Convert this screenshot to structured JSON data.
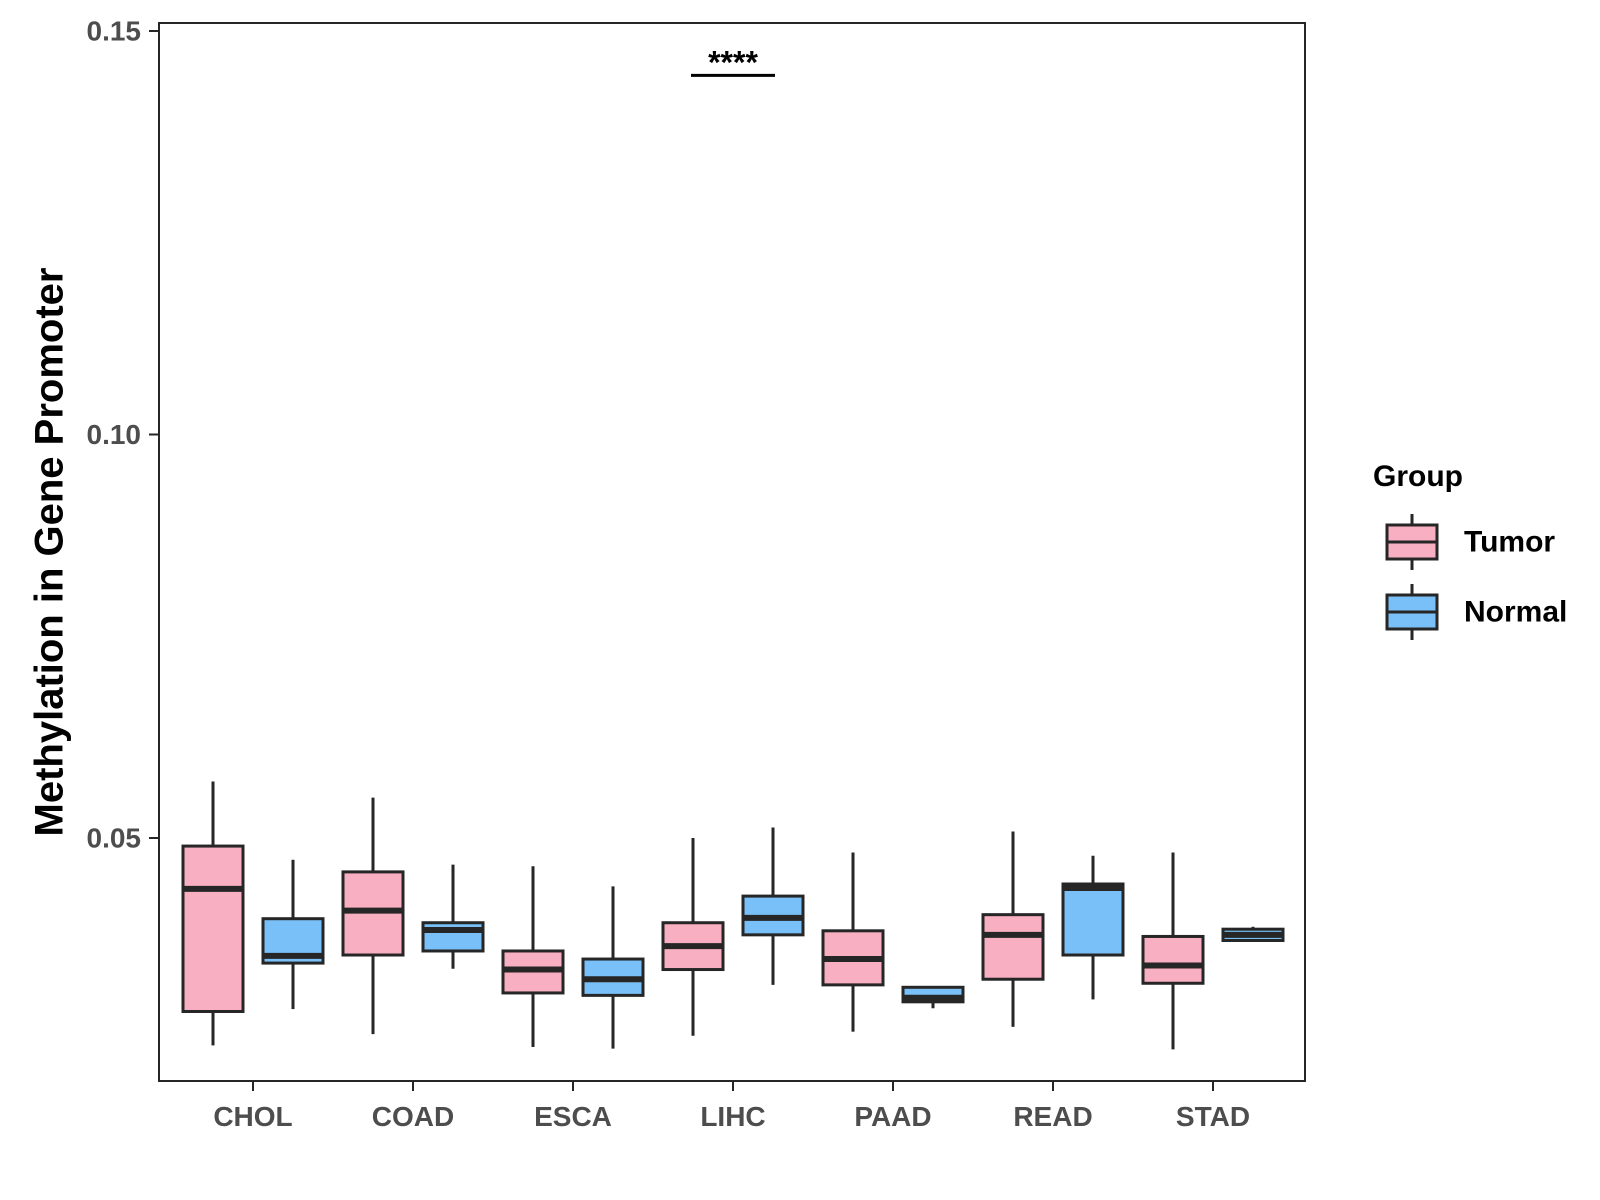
{
  "chart_data": {
    "type": "boxplot",
    "title": "",
    "xlabel": "",
    "ylabel": "Methylation in Gene Promoter",
    "ylim": [
      0.02,
      0.151
    ],
    "yticks": [
      0.05,
      0.1,
      0.15
    ],
    "ytick_labels": [
      "0.05",
      "0.10",
      "0.15"
    ],
    "categories": [
      "CHOL",
      "COAD",
      "ESCA",
      "LIHC",
      "PAAD",
      "READ",
      "STAD"
    ],
    "legend": {
      "title": "Group",
      "position": "right",
      "entries": [
        "Tumor",
        "Normal"
      ]
    },
    "colors": {
      "Tumor": "#f9afc2",
      "Normal": "#78c0f7",
      "outline": "#262626"
    },
    "series": [
      {
        "name": "Tumor",
        "boxes": [
          {
            "category": "CHOL",
            "min": 0.0243,
            "q1": 0.0285,
            "median": 0.0437,
            "q3": 0.049,
            "max": 0.057
          },
          {
            "category": "COAD",
            "min": 0.0257,
            "q1": 0.0355,
            "median": 0.041,
            "q3": 0.0458,
            "max": 0.055
          },
          {
            "category": "ESCA",
            "min": 0.0241,
            "q1": 0.0308,
            "median": 0.0337,
            "q3": 0.036,
            "max": 0.0465
          },
          {
            "category": "LIHC",
            "min": 0.0255,
            "q1": 0.0337,
            "median": 0.0366,
            "q3": 0.0395,
            "max": 0.05
          },
          {
            "category": "PAAD",
            "min": 0.026,
            "q1": 0.0318,
            "median": 0.035,
            "q3": 0.0385,
            "max": 0.0482
          },
          {
            "category": "READ",
            "min": 0.0266,
            "q1": 0.0325,
            "median": 0.038,
            "q3": 0.0405,
            "max": 0.0508
          },
          {
            "category": "STAD",
            "min": 0.0238,
            "q1": 0.032,
            "median": 0.0342,
            "q3": 0.0378,
            "max": 0.0482
          }
        ]
      },
      {
        "name": "Normal",
        "boxes": [
          {
            "category": "CHOL",
            "min": 0.0288,
            "q1": 0.0345,
            "median": 0.0354,
            "q3": 0.04,
            "max": 0.0473
          },
          {
            "category": "COAD",
            "min": 0.0338,
            "q1": 0.036,
            "median": 0.0386,
            "q3": 0.0395,
            "max": 0.0467
          },
          {
            "category": "ESCA",
            "min": 0.0239,
            "q1": 0.0305,
            "median": 0.0325,
            "q3": 0.035,
            "max": 0.044
          },
          {
            "category": "LIHC",
            "min": 0.0318,
            "q1": 0.038,
            "median": 0.0401,
            "q3": 0.0428,
            "max": 0.0513
          },
          {
            "category": "PAAD",
            "min": 0.0289,
            "q1": 0.0297,
            "median": 0.0302,
            "q3": 0.0315,
            "max": 0.0315
          },
          {
            "category": "READ",
            "min": 0.03,
            "q1": 0.0355,
            "median": 0.0438,
            "q3": 0.0443,
            "max": 0.0478
          },
          {
            "category": "STAD",
            "min": 0.0372,
            "q1": 0.0373,
            "median": 0.038,
            "q3": 0.0387,
            "max": 0.039
          }
        ]
      }
    ],
    "annotations": [
      {
        "category": "LIHC",
        "text": "****",
        "y": 0.1445
      }
    ]
  }
}
